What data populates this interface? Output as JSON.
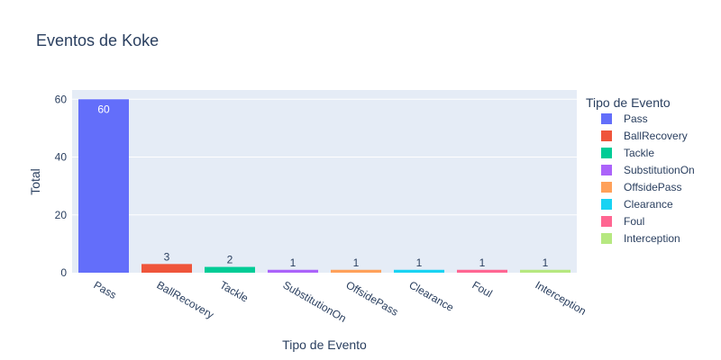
{
  "chart_data": {
    "type": "bar",
    "title": "Eventos de Koke",
    "xlabel": "Tipo de Evento",
    "ylabel": "Total",
    "ylim": [
      0,
      63.2
    ],
    "yticks": [
      0,
      20,
      40,
      60
    ],
    "grid": true,
    "legend": {
      "title": "Tipo de Evento",
      "placement": "right"
    },
    "categories": [
      "Pass",
      "BallRecovery",
      "Tackle",
      "SubstitutionOn",
      "OffsidePass",
      "Clearance",
      "Foul",
      "Interception"
    ],
    "values": [
      60,
      3,
      2,
      1,
      1,
      1,
      1,
      1
    ],
    "colors": [
      "#636efa",
      "#EF553B",
      "#00cc96",
      "#ab63fa",
      "#FFA15A",
      "#19d3f3",
      "#FF6692",
      "#B6E880"
    ],
    "plot_background": "#E5ECF6"
  }
}
